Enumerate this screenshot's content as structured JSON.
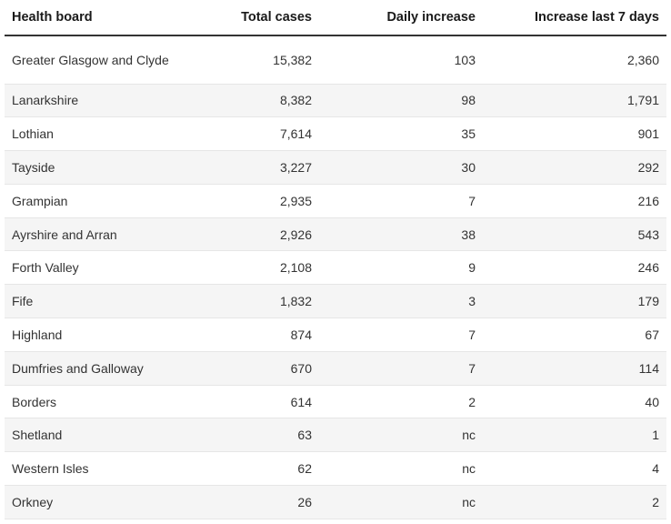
{
  "table": {
    "headers": {
      "board": "Health board",
      "total": "Total cases",
      "daily": "Daily increase",
      "week": "Increase last 7 days"
    },
    "rows": [
      {
        "board": "Greater Glasgow and Clyde",
        "total": "15,382",
        "daily": "103",
        "week": "2,360"
      },
      {
        "board": "Lanarkshire",
        "total": "8,382",
        "daily": "98",
        "week": "1,791"
      },
      {
        "board": "Lothian",
        "total": "7,614",
        "daily": "35",
        "week": "901"
      },
      {
        "board": "Tayside",
        "total": "3,227",
        "daily": "30",
        "week": "292"
      },
      {
        "board": "Grampian",
        "total": "2,935",
        "daily": "7",
        "week": "216"
      },
      {
        "board": "Ayrshire and Arran",
        "total": "2,926",
        "daily": "38",
        "week": "543"
      },
      {
        "board": "Forth Valley",
        "total": "2,108",
        "daily": "9",
        "week": "246"
      },
      {
        "board": "Fife",
        "total": "1,832",
        "daily": "3",
        "week": "179"
      },
      {
        "board": "Highland",
        "total": "874",
        "daily": "7",
        "week": "67"
      },
      {
        "board": "Dumfries and Galloway",
        "total": "670",
        "daily": "7",
        "week": "114"
      },
      {
        "board": "Borders",
        "total": "614",
        "daily": "2",
        "week": "40"
      },
      {
        "board": "Shetland",
        "total": "63",
        "daily": "nc",
        "week": "1"
      },
      {
        "board": "Western Isles",
        "total": "62",
        "daily": "nc",
        "week": "4"
      },
      {
        "board": "Orkney",
        "total": "26",
        "daily": "nc",
        "week": "2"
      }
    ]
  }
}
